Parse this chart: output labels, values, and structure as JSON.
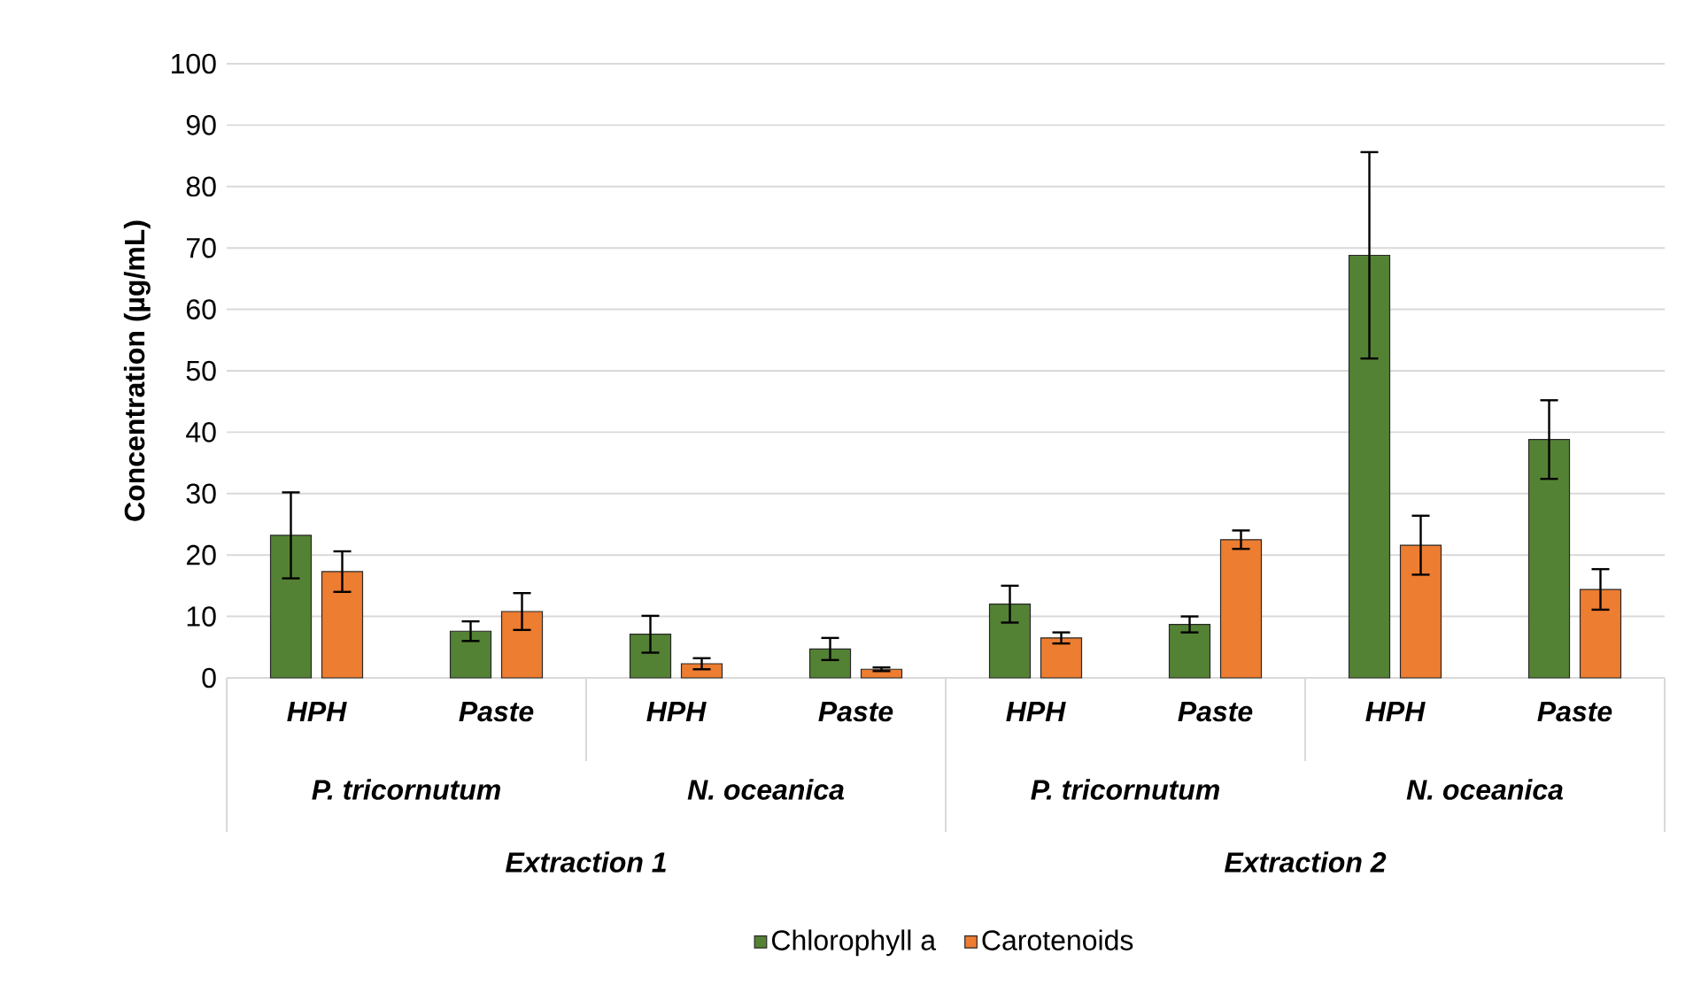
{
  "chart_data": {
    "type": "bar",
    "ylabel": "Concentration (µg/mL)",
    "categories": [
      "HPH",
      "Paste",
      "HPH",
      "Paste",
      "HPH",
      "Paste",
      "HPH",
      "Paste"
    ],
    "annotations": [
      "P. tricornutum",
      "N. oceanica",
      "P. tricornutum",
      "N. oceanica",
      "Extraction 1",
      "Extraction 2"
    ],
    "series": [
      {
        "name": "Chlorophyll a",
        "color": "#548235",
        "values": [
          23.2,
          7.6,
          7.1,
          4.7,
          12.0,
          8.7,
          68.8,
          38.8
        ],
        "errors": [
          7.0,
          1.6,
          3.0,
          1.8,
          3.0,
          1.3,
          16.8,
          6.4
        ]
      },
      {
        "name": "Carotenoids",
        "color": "#ed7d31",
        "values": [
          17.3,
          10.8,
          2.3,
          1.4,
          6.5,
          22.5,
          21.6,
          14.4
        ],
        "errors": [
          3.3,
          3.0,
          0.9,
          0.3,
          0.9,
          1.5,
          4.8,
          3.3
        ]
      }
    ],
    "ylim": [
      0,
      100
    ],
    "yticks": [
      0,
      10,
      20,
      30,
      40,
      50,
      60,
      70,
      80,
      90,
      100
    ],
    "grid": "y",
    "legend": "bottom"
  }
}
